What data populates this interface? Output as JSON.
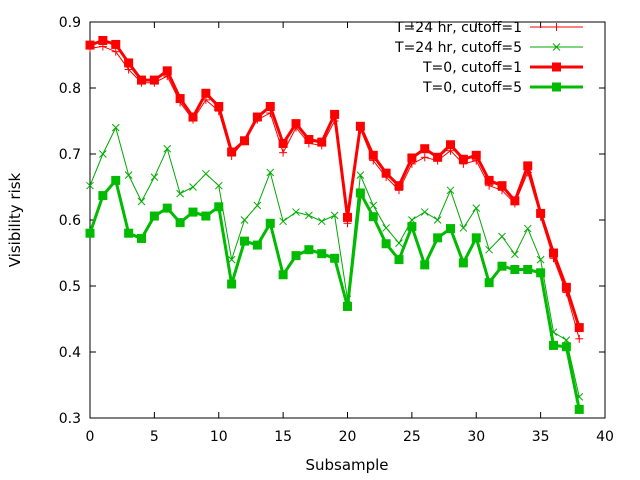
{
  "chart_data": {
    "type": "line",
    "xlabel": "Subsample",
    "ylabel": "Visibility risk",
    "xlim": [
      0,
      40
    ],
    "ylim": [
      0.3,
      0.9
    ],
    "xticks": [
      0,
      5,
      10,
      15,
      20,
      25,
      30,
      35,
      40
    ],
    "yticks": [
      0.3,
      0.4,
      0.5,
      0.6,
      0.7,
      0.8,
      0.9
    ],
    "grid": false,
    "legend_position": "top-right",
    "x": [
      0,
      1,
      2,
      3,
      4,
      5,
      6,
      7,
      8,
      9,
      10,
      11,
      12,
      13,
      14,
      15,
      16,
      17,
      18,
      19,
      20,
      21,
      22,
      23,
      24,
      25,
      26,
      27,
      28,
      29,
      30,
      31,
      32,
      33,
      34,
      35,
      36,
      37,
      38
    ],
    "series": [
      {
        "name": "T=24 hr, cutoff=1",
        "color": "#ff0000",
        "marker": "plus",
        "line": "thin",
        "values": [
          0.86,
          0.863,
          0.855,
          0.828,
          0.808,
          0.808,
          0.818,
          0.778,
          0.752,
          0.782,
          0.765,
          0.697,
          0.72,
          0.752,
          0.762,
          0.702,
          0.74,
          0.716,
          0.713,
          0.75,
          0.595,
          0.738,
          0.69,
          0.665,
          0.645,
          0.685,
          0.695,
          0.69,
          0.705,
          0.685,
          0.69,
          0.652,
          0.645,
          0.625,
          0.672,
          0.605,
          0.542,
          0.49,
          0.42
        ]
      },
      {
        "name": "T=24 hr, cutoff=5",
        "color": "#00aa00",
        "marker": "cross",
        "line": "thin",
        "values": [
          0.652,
          0.7,
          0.74,
          0.668,
          0.628,
          0.665,
          0.708,
          0.64,
          0.65,
          0.67,
          0.652,
          0.54,
          0.6,
          0.622,
          0.672,
          0.598,
          0.612,
          0.607,
          0.598,
          0.607,
          0.48,
          0.668,
          0.622,
          0.588,
          0.565,
          0.6,
          0.612,
          0.6,
          0.645,
          0.588,
          0.618,
          0.555,
          0.575,
          0.548,
          0.587,
          0.54,
          0.43,
          0.418,
          0.332
        ]
      },
      {
        "name": "T=0, cutoff=1",
        "color": "#ff0000",
        "marker": "square",
        "line": "thick",
        "values": [
          0.865,
          0.872,
          0.866,
          0.838,
          0.812,
          0.812,
          0.826,
          0.784,
          0.756,
          0.792,
          0.772,
          0.703,
          0.72,
          0.756,
          0.772,
          0.716,
          0.746,
          0.722,
          0.718,
          0.76,
          0.604,
          0.742,
          0.698,
          0.671,
          0.652,
          0.694,
          0.708,
          0.695,
          0.714,
          0.692,
          0.698,
          0.66,
          0.652,
          0.629,
          0.682,
          0.61,
          0.55,
          0.498,
          0.437
        ]
      },
      {
        "name": "T=0, cutoff=5",
        "color": "#00bb00",
        "marker": "square",
        "line": "thick",
        "values": [
          0.58,
          0.637,
          0.66,
          0.58,
          0.572,
          0.606,
          0.618,
          0.596,
          0.612,
          0.606,
          0.62,
          0.503,
          0.568,
          0.562,
          0.595,
          0.517,
          0.546,
          0.555,
          0.549,
          0.542,
          0.469,
          0.641,
          0.605,
          0.564,
          0.54,
          0.59,
          0.532,
          0.573,
          0.587,
          0.535,
          0.573,
          0.505,
          0.53,
          0.525,
          0.525,
          0.52,
          0.41,
          0.408,
          0.313
        ]
      }
    ]
  }
}
